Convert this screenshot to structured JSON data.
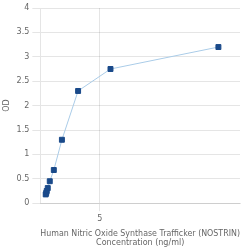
{
  "chart_data": {
    "type": "line",
    "x": [
      0.0,
      0.047,
      0.094,
      0.188,
      0.375,
      0.75,
      1.5,
      3,
      6,
      16
    ],
    "values": [
      0.18,
      0.21,
      0.25,
      0.31,
      0.45,
      0.68,
      1.3,
      2.3,
      2.75,
      3.2
    ],
    "color": "#aacce8",
    "colors": [
      "#1a4a8a",
      "#1a4a8a",
      "#1a4a8a",
      "#1a4a8a",
      "#1a4a8a",
      "#1a4a8a",
      "#1a4a8a",
      "#1a4a8a",
      "#1a4a8a",
      "#1a4a8a"
    ],
    "marker": "square",
    "xlabel": [
      "Human Nitric Oxide Synthase Trafficker (NOSTRIN)",
      "Concentration (ng/ml)"
    ],
    "ylabel": "OD",
    "xlim": [
      -0.5,
      18
    ],
    "xticks": [
      5
    ],
    "ylim": [
      0,
      4
    ],
    "yticks": [
      0,
      0.5,
      1.0,
      1.5,
      2.0,
      2.5,
      3.0,
      3.5,
      4.0
    ],
    "grid": true
  }
}
